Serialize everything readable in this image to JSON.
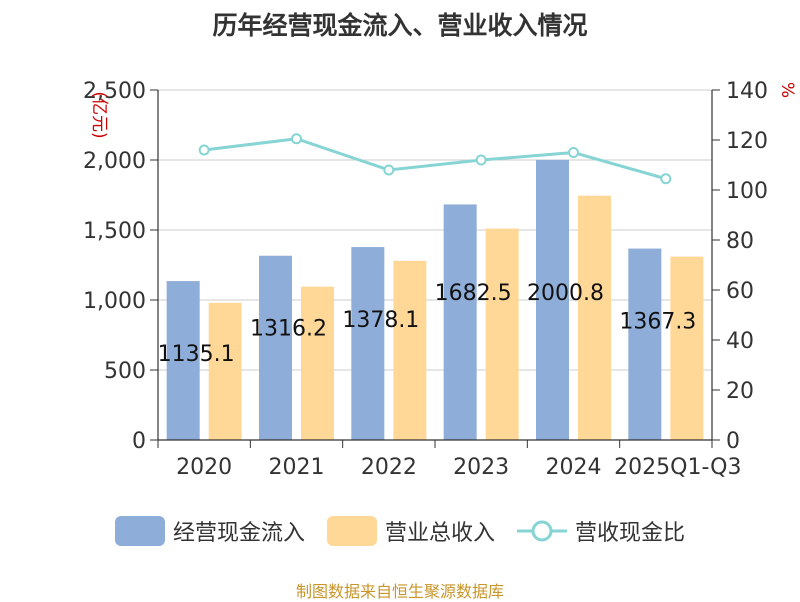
{
  "chart_data": {
    "type": "bar",
    "title": "历年经营现金流入、营业收入情况",
    "categories": [
      "2020",
      "2021",
      "2022",
      "2023",
      "2024",
      "2025Q1-Q3"
    ],
    "series": [
      {
        "name": "经营现金流入",
        "axis": "left",
        "type": "bar",
        "color": "#8eadd9",
        "values": [
          1135.1,
          1316.2,
          1378.1,
          1682.5,
          2000.8,
          1367.3
        ]
      },
      {
        "name": "营业总收入",
        "axis": "left",
        "type": "bar",
        "color": "#ffd898",
        "values": [
          980,
          1095,
          1280,
          1510,
          1745,
          1310
        ]
      },
      {
        "name": "营收现金比",
        "axis": "right",
        "type": "line",
        "color": "#86d4d4",
        "values": [
          116,
          120.5,
          108,
          112,
          115,
          104.5
        ]
      }
    ],
    "data_labels": [
      "1135.1",
      "1316.2",
      "1378.1",
      "1682.5",
      "2000.8",
      "1367.3"
    ],
    "ylabel_left": "(亿元)",
    "ylabel_right": "%",
    "ylim_left": [
      0,
      2500
    ],
    "ylim_right": [
      0,
      140
    ],
    "yticks_left": [
      "0",
      "500",
      "1,000",
      "1,500",
      "2,000",
      "2,500"
    ],
    "yticks_right": [
      "0",
      "20",
      "40",
      "60",
      "80",
      "100",
      "120",
      "140"
    ],
    "grid": true,
    "legend_position": "bottom"
  },
  "source": "制图数据来自恒生聚源数据库"
}
